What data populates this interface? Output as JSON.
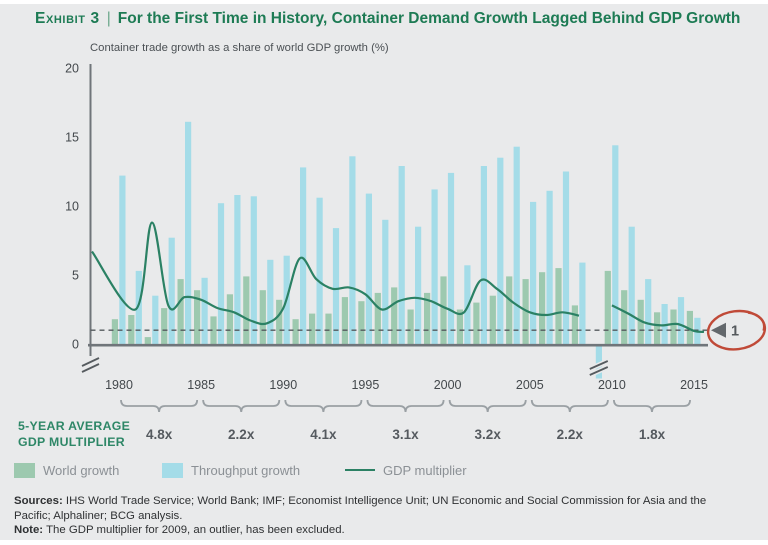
{
  "header": {
    "exhibit_label": "Exhibit 3",
    "separator": "|",
    "title": "For the First Time in History, Container Demand Growth Lagged Behind GDP Growth"
  },
  "chart_data": {
    "type": "bar",
    "subtype": "grouped bars with smoothed line overlay",
    "title": "For the First Time in History, Container Demand Growth Lagged Behind GDP Growth",
    "ylabel": "Container trade growth as a share of world GDP growth (%)",
    "ylim": [
      0,
      20
    ],
    "yticks": [
      0,
      5,
      10,
      15,
      20
    ],
    "xticks": [
      1980,
      1985,
      1990,
      1995,
      2000,
      2005,
      2010,
      2015
    ],
    "years": [
      1980,
      1981,
      1982,
      1983,
      1984,
      1985,
      1986,
      1987,
      1988,
      1989,
      1990,
      1991,
      1992,
      1993,
      1994,
      1995,
      1996,
      1997,
      1998,
      1999,
      2000,
      2001,
      2002,
      2003,
      2004,
      2005,
      2006,
      2007,
      2008,
      2009,
      2010,
      2011,
      2012,
      2013,
      2014,
      2015
    ],
    "series": [
      {
        "name": "World growth",
        "type": "bar",
        "color": "#9dc9af",
        "values": [
          1.8,
          2.1,
          0.5,
          2.6,
          4.7,
          3.9,
          2.0,
          3.6,
          4.9,
          3.9,
          3.2,
          1.8,
          2.2,
          2.2,
          3.4,
          3.1,
          3.7,
          4.1,
          2.5,
          3.7,
          4.9,
          2.5,
          3.0,
          3.5,
          4.9,
          4.7,
          5.2,
          5.5,
          2.8,
          null,
          5.3,
          3.9,
          3.2,
          2.3,
          2.5,
          2.4
        ]
      },
      {
        "name": "Throughput growth",
        "type": "bar",
        "color": "#a4dce8",
        "values": [
          12.2,
          5.3,
          3.5,
          7.7,
          16.1,
          4.8,
          10.2,
          10.8,
          10.7,
          6.1,
          6.4,
          12.8,
          10.6,
          8.4,
          13.6,
          10.9,
          9.0,
          12.9,
          8.5,
          11.2,
          12.4,
          5.7,
          12.9,
          13.5,
          14.3,
          10.3,
          11.1,
          12.5,
          5.9,
          null,
          14.4,
          8.5,
          4.7,
          2.9,
          3.4,
          1.9
        ]
      },
      {
        "name": "GDP multiplier",
        "type": "line",
        "color": "#2b8164",
        "values": [
          6.7,
          2.5,
          8.8,
          2.8,
          3.4,
          3.2,
          2.6,
          2.3,
          1.7,
          1.5,
          2.6,
          6.2,
          4.7,
          4.0,
          4.1,
          3.6,
          2.5,
          3.1,
          3.35,
          3.1,
          2.55,
          2.3,
          4.6,
          4.0,
          3.0,
          2.3,
          2.1,
          2.3,
          2.05,
          null,
          2.8,
          2.2,
          1.55,
          1.35,
          1.45,
          0.95
        ]
      }
    ],
    "special_2009": {
      "throughput": "negative, off-scale, drawn below axis with break marks",
      "gdp_multiplier": "excluded (outlier)"
    },
    "y_axis_break_below_zero": true,
    "reference_line": {
      "value": 1,
      "style": "dashed",
      "color": "#54595d"
    },
    "annotation": {
      "value": "1",
      "marker": "left-triangle",
      "circled": true,
      "circle_color": "#c04a38"
    },
    "multiplier_row": {
      "label_line1": "5-YEAR AVERAGE",
      "label_line2": "GDP MULTIPLIER",
      "label_color": "#2e8767",
      "groups": [
        {
          "from": 1980,
          "to": 1985,
          "value": "4.8x"
        },
        {
          "from": 1985,
          "to": 1990,
          "value": "2.2x"
        },
        {
          "from": 1990,
          "to": 1995,
          "value": "4.1x"
        },
        {
          "from": 1995,
          "to": 2000,
          "value": "3.1x"
        },
        {
          "from": 2000,
          "to": 2005,
          "value": "3.2x"
        },
        {
          "from": 2005,
          "to": 2010,
          "value": "2.2x"
        },
        {
          "from": 2010,
          "to": 2015,
          "value": "1.8x"
        }
      ]
    },
    "legend_position": "bottom"
  },
  "legend": {
    "items": [
      {
        "label": "World growth",
        "swatch": "square",
        "color": "#9dc9af"
      },
      {
        "label": "Throughput growth",
        "swatch": "square",
        "color": "#a4dce8"
      },
      {
        "label": "GDP multiplier",
        "swatch": "line",
        "color": "#2b8164"
      }
    ]
  },
  "footer": {
    "sources_label": "Sources:",
    "sources_text": " IHS World Trade Service; World Bank; IMF; Economist Intelligence Unit; UN Economic and Social Commission for Asia and the Pacific; Alphaliner; BCG analysis.",
    "note_label": "Note:",
    "note_text": " The GDP multiplier for 2009, an outlier, has been excluded."
  }
}
